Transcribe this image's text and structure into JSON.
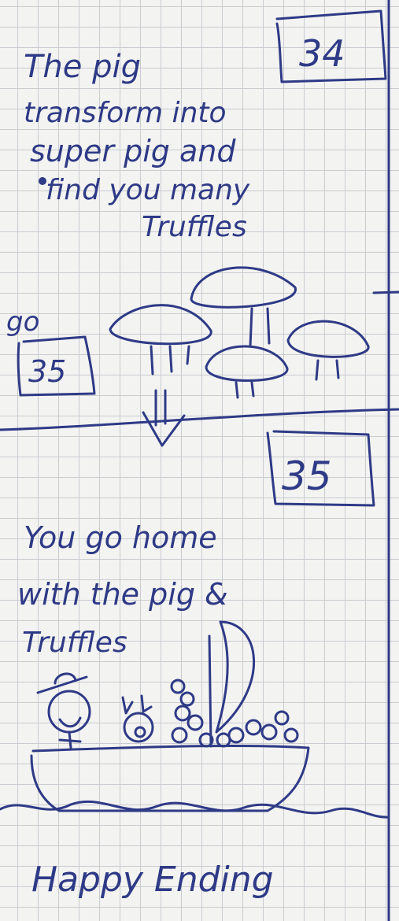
{
  "page_34": {
    "number": "34",
    "text_lines": [
      "The pig",
      "transform into",
      "super pig and",
      "find you many",
      "Truffles"
    ],
    "goto_label": "go",
    "goto_number": "35"
  },
  "page_35": {
    "number": "35",
    "text_lines": [
      "You go home",
      "with the pig &",
      "Truffles"
    ]
  },
  "ending": "Happy Ending",
  "colors": {
    "ink": "#2e3a86",
    "paper": "#f3f3f1",
    "grid": "#c9cbd0"
  }
}
